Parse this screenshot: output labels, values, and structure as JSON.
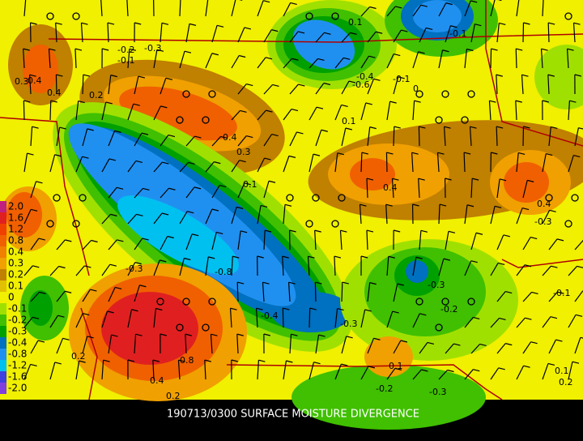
{
  "caption": "190713/0300 SURFACE MOISTURE DIVERGENCE",
  "legend": [
    {
      "label": "2.0",
      "color": "#c02080"
    },
    {
      "label": "1.6",
      "color": "#e02020"
    },
    {
      "label": "1.2",
      "color": "#f04000"
    },
    {
      "label": "0.8",
      "color": "#f06000"
    },
    {
      "label": "0.4",
      "color": "#f08000"
    },
    {
      "label": "0.3",
      "color": "#f0a000"
    },
    {
      "label": "0.2",
      "color": "#c08000"
    },
    {
      "label": "0.1",
      "color": "#e0c000"
    },
    {
      "label": "0",
      "color": "#f0f000"
    },
    {
      "label": "-0.1",
      "color": "#a0e000"
    },
    {
      "label": "-0.2",
      "color": "#40c000"
    },
    {
      "label": "-0.3",
      "color": "#00a000"
    },
    {
      "label": "-0.4",
      "color": "#0070c0"
    },
    {
      "label": "-0.8",
      "color": "#2090f0"
    },
    {
      "label": "-1.2",
      "color": "#00c0f0"
    },
    {
      "label": "-1.6",
      "color": "#4040e0"
    },
    {
      "label": "-2.0",
      "color": "#8040e0"
    }
  ],
  "contour_labels": [
    "-0.2",
    "-0.3",
    "-0.1",
    "-0.4",
    "0.2",
    "0.4",
    "0.3",
    "0.1",
    "0.1",
    "-0.4",
    "-0.6",
    "-0.1",
    "0",
    "0.4",
    "0.4",
    "-0.3",
    "0.1",
    "-0.1",
    "-0.8",
    "-0.4",
    "-0.3",
    "-0.3",
    "-0.2",
    "-0.1",
    "0.3",
    "0.4",
    "0.8",
    "0.4",
    "0.2",
    "0.2",
    "-0.2",
    "-0.3",
    "0.1",
    "0.2",
    "0.1",
    "-0.3"
  ]
}
